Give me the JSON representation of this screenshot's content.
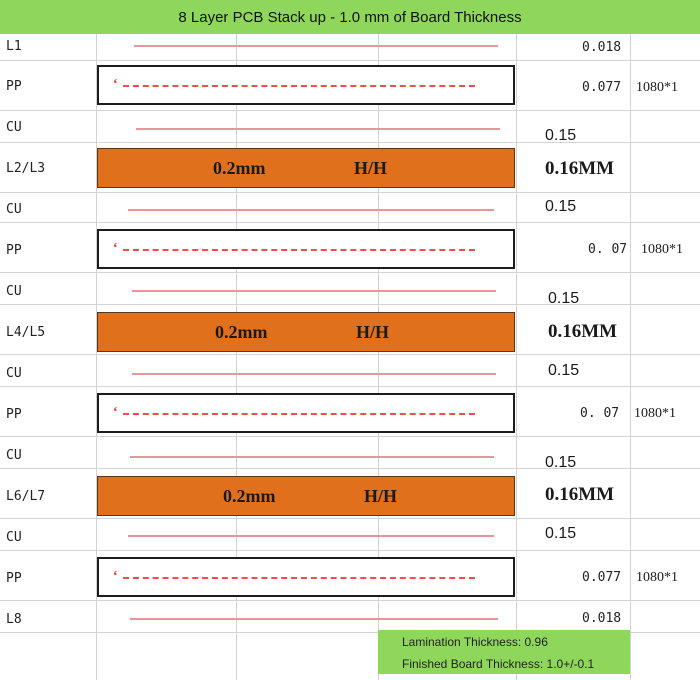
{
  "title": "8 Layer PCB Stack up - 1.0 mm of Board Thickness",
  "layers": [
    {
      "label": "L1",
      "kind": "copper",
      "thickness": "0.018"
    },
    {
      "label": "PP",
      "kind": "prepreg",
      "thickness": "0.077",
      "glass": "1080*1"
    },
    {
      "label": "CU",
      "kind": "copper",
      "thickness": "0.15"
    },
    {
      "label": "L2/L3",
      "kind": "core",
      "core_thickness": "0.2mm",
      "copper_weight": "H/H",
      "thickness": "0.16MM"
    },
    {
      "label": "CU",
      "kind": "copper",
      "thickness": "0.15"
    },
    {
      "label": "PP",
      "kind": "prepreg",
      "thickness": "0. 07",
      "glass": "1080*1"
    },
    {
      "label": "CU",
      "kind": "copper",
      "thickness": "0.15"
    },
    {
      "label": "L4/L5",
      "kind": "core",
      "core_thickness": "0.2mm",
      "copper_weight": "H/H",
      "thickness": "0.16MM"
    },
    {
      "label": "CU",
      "kind": "copper",
      "thickness": "0.15"
    },
    {
      "label": "PP",
      "kind": "prepreg",
      "thickness": "0. 07",
      "glass": "1080*1"
    },
    {
      "label": "CU",
      "kind": "copper",
      "thickness": "0.15"
    },
    {
      "label": "L6/L7",
      "kind": "core",
      "core_thickness": "0.2mm",
      "copper_weight": "H/H",
      "thickness": "0.16MM"
    },
    {
      "label": "CU",
      "kind": "copper",
      "thickness": "0.15"
    },
    {
      "label": "PP",
      "kind": "prepreg",
      "thickness": "0.077",
      "glass": "1080*1"
    },
    {
      "label": "L8",
      "kind": "copper",
      "thickness": "0.018"
    }
  ],
  "summary": {
    "lamination": "Lamination Thickness: 0.96",
    "finished": "Finished Board Thickness: 1.0+/-0.1"
  },
  "colors": {
    "header_green": "#8fd75a",
    "core_orange": "#e0701c",
    "copper_line": "#e7969b",
    "prepreg_dash": "#ea5050"
  }
}
